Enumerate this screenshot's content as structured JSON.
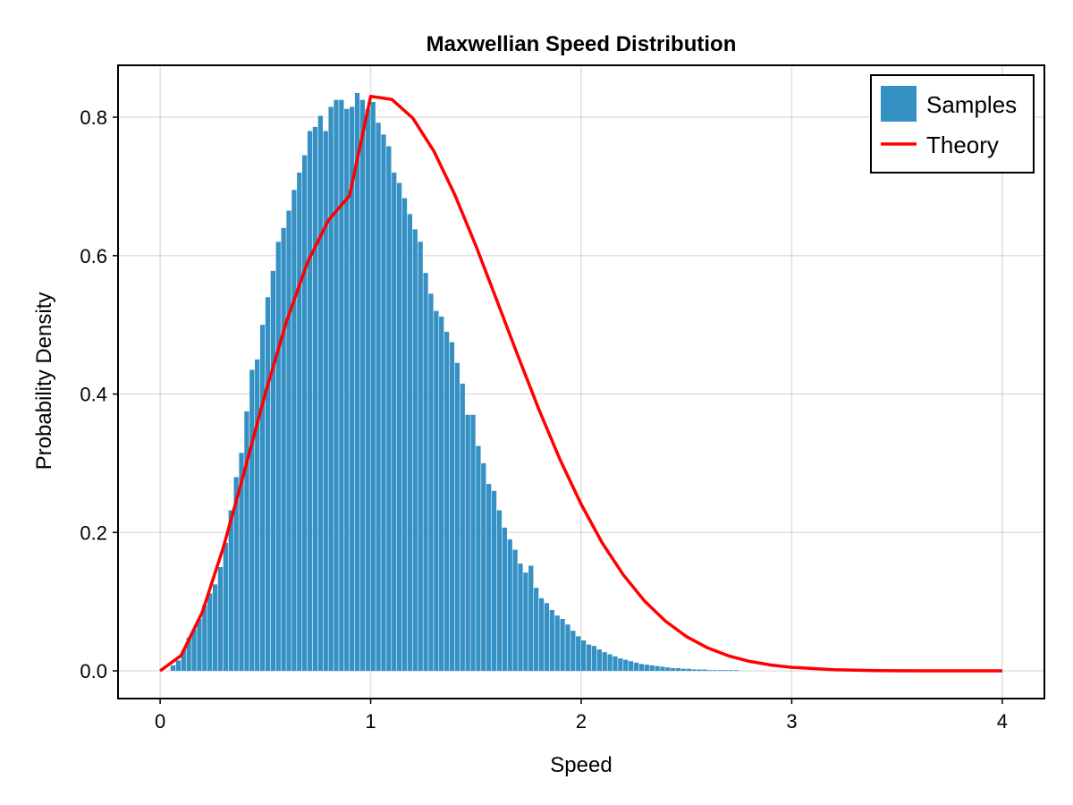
{
  "chart_data": {
    "type": "bar",
    "title": "Maxwellian Speed Distribution",
    "xlabel": "Speed",
    "ylabel": "Probability Density",
    "xlim": [
      -0.2,
      4.2
    ],
    "ylim": [
      -0.04,
      0.875
    ],
    "xticks": [
      0,
      1,
      2,
      3,
      4
    ],
    "xtick_labels": [
      "0",
      "1",
      "2",
      "3",
      "4"
    ],
    "yticks": [
      0.0,
      0.2,
      0.4,
      0.6,
      0.8
    ],
    "ytick_labels": [
      "0.0",
      "0.2",
      "0.4",
      "0.6",
      "0.8"
    ],
    "grid": true,
    "legend_position": "top-right",
    "bin_width": 0.025,
    "series": [
      {
        "name": "Samples",
        "kind": "histogram",
        "color": "#3591c4",
        "bin_start": [
          0.05,
          0.075,
          0.1,
          0.125,
          0.15,
          0.175,
          0.2,
          0.225,
          0.25,
          0.275,
          0.3,
          0.325,
          0.35,
          0.375,
          0.4,
          0.425,
          0.45,
          0.475,
          0.5,
          0.525,
          0.55,
          0.575,
          0.6,
          0.625,
          0.65,
          0.675,
          0.7,
          0.725,
          0.75,
          0.775,
          0.8,
          0.825,
          0.85,
          0.875,
          0.9,
          0.925,
          0.95,
          0.975,
          1.0,
          1.025,
          1.05,
          1.075,
          1.1,
          1.125,
          1.15,
          1.175,
          1.2,
          1.225,
          1.25,
          1.275,
          1.3,
          1.325,
          1.35,
          1.375,
          1.4,
          1.425,
          1.45,
          1.475,
          1.5,
          1.525,
          1.55,
          1.575,
          1.6,
          1.625,
          1.65,
          1.675,
          1.7,
          1.725,
          1.75,
          1.775,
          1.8,
          1.825,
          1.85,
          1.875,
          1.9,
          1.925,
          1.95,
          1.975,
          2.0,
          2.025,
          2.05,
          2.075,
          2.1,
          2.125,
          2.15,
          2.175,
          2.2,
          2.225,
          2.25,
          2.275,
          2.3,
          2.325,
          2.35,
          2.375,
          2.4,
          2.425,
          2.45,
          2.475,
          2.5,
          2.525,
          2.55,
          2.575,
          2.6,
          2.625,
          2.65,
          2.675,
          2.7,
          2.725,
          2.75,
          2.775,
          2.8,
          2.825,
          2.85,
          2.875,
          2.9,
          2.925,
          2.95,
          2.975
        ],
        "values": [
          0.008,
          0.015,
          0.03,
          0.048,
          0.06,
          0.075,
          0.095,
          0.112,
          0.125,
          0.15,
          0.185,
          0.232,
          0.28,
          0.315,
          0.375,
          0.435,
          0.45,
          0.5,
          0.54,
          0.578,
          0.62,
          0.64,
          0.665,
          0.695,
          0.72,
          0.745,
          0.78,
          0.786,
          0.802,
          0.78,
          0.815,
          0.825,
          0.825,
          0.812,
          0.815,
          0.835,
          0.825,
          0.812,
          0.822,
          0.792,
          0.775,
          0.758,
          0.72,
          0.705,
          0.683,
          0.66,
          0.638,
          0.62,
          0.575,
          0.545,
          0.52,
          0.512,
          0.49,
          0.475,
          0.445,
          0.415,
          0.37,
          0.37,
          0.325,
          0.3,
          0.27,
          0.26,
          0.232,
          0.207,
          0.19,
          0.175,
          0.155,
          0.142,
          0.152,
          0.12,
          0.105,
          0.098,
          0.088,
          0.08,
          0.075,
          0.067,
          0.058,
          0.05,
          0.044,
          0.038,
          0.036,
          0.031,
          0.027,
          0.024,
          0.021,
          0.018,
          0.016,
          0.014,
          0.012,
          0.01,
          0.009,
          0.008,
          0.007,
          0.006,
          0.005,
          0.004,
          0.004,
          0.003,
          0.003,
          0.002,
          0.002,
          0.002,
          0.001,
          0.001,
          0.001,
          0.001,
          0.001,
          0.001,
          0.0,
          0.0,
          0.0,
          0.0,
          0.0,
          0.0,
          0.0,
          0.0,
          0.0,
          0.0
        ]
      },
      {
        "name": "Theory",
        "kind": "line",
        "color": "#ff0000",
        "x": [
          0.0,
          0.1,
          0.2,
          0.3,
          0.4,
          0.5,
          0.6,
          0.7,
          0.8,
          0.9,
          1.0,
          1.1,
          1.2,
          1.3,
          1.4,
          1.5,
          1.6,
          1.7,
          1.8,
          1.9,
          2.0,
          2.1,
          2.2,
          2.3,
          2.4,
          2.5,
          2.6,
          2.7,
          2.8,
          2.9,
          3.0,
          3.2,
          3.4,
          3.6,
          3.8,
          4.0
        ],
        "y": [
          0.0,
          0.0223,
          0.0847,
          0.178,
          0.2883,
          0.4013,
          0.5049,
          0.5902,
          0.6516,
          0.6867,
          0.8302,
          0.8258,
          0.7988,
          0.751,
          0.6877,
          0.614,
          0.5347,
          0.4546,
          0.377,
          0.3047,
          0.2406,
          0.1849,
          0.1387,
          0.1012,
          0.0719,
          0.0496,
          0.0333,
          0.0217,
          0.0138,
          0.0085,
          0.0051,
          0.0017,
          0.0005,
          0.0001,
          0.0,
          0.0
        ]
      }
    ]
  }
}
